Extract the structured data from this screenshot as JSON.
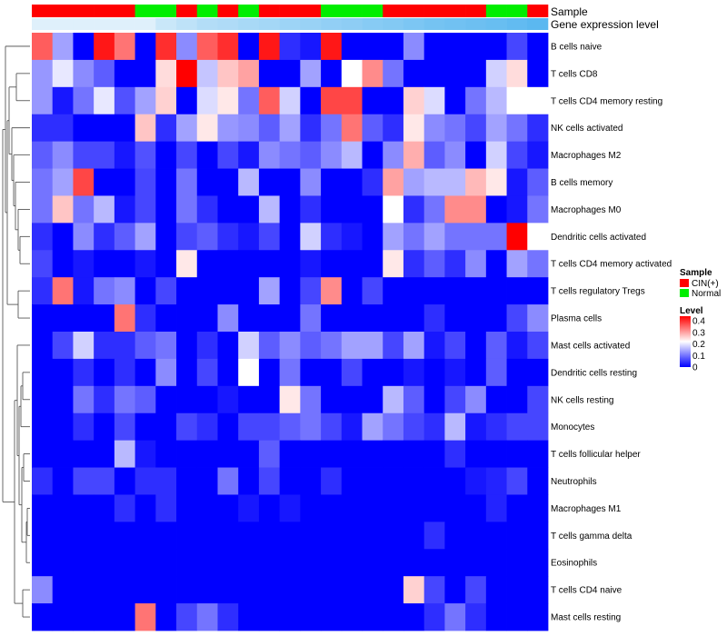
{
  "chart_data": {
    "type": "heatmap",
    "title": "",
    "annotation_labels": {
      "sample": "Sample",
      "gene_expression": "Gene expression level"
    },
    "rows": [
      "B cells naive",
      "T cells CD8",
      "T cells CD4 memory resting",
      "NK cells activated",
      "Macrophages M2",
      "B cells memory",
      "Macrophages M0",
      "Dendritic cells activated",
      "T cells CD4 memory activated",
      "T cells regulatory  Tregs",
      "Plasma cells",
      "Mast cells activated",
      "Dendritic cells resting",
      "NK cells resting",
      "Monocytes",
      "T cells follicular helper",
      "Neutrophils",
      "Macrophages M1",
      "T cells gamma delta",
      "Eosinophils",
      "T cells CD4 naive",
      "Mast cells resting"
    ],
    "samples": [
      "CIN(+)",
      "CIN(+)",
      "CIN(+)",
      "CIN(+)",
      "CIN(+)",
      "Normal",
      "Normal",
      "CIN(+)",
      "Normal",
      "CIN(+)",
      "Normal",
      "CIN(+)",
      "CIN(+)",
      "CIN(+)",
      "Normal",
      "Normal",
      "Normal",
      "CIN(+)",
      "CIN(+)",
      "CIN(+)",
      "CIN(+)",
      "CIN(+)",
      "Normal",
      "Normal",
      "CIN(+)"
    ],
    "gene_expression_level": [
      0.2,
      0.2,
      0.2,
      0.2,
      0.2,
      0.2,
      0.3,
      0.35,
      0.4,
      0.42,
      0.45,
      0.47,
      0.5,
      0.52,
      0.55,
      0.57,
      0.6,
      0.62,
      0.65,
      0.68,
      0.7,
      0.72,
      0.74,
      0.77,
      0.8
    ],
    "values": [
      [
        0.36,
        0.14,
        0.0,
        0.42,
        0.34,
        0.0,
        0.4,
        0.12,
        0.36,
        0.4,
        0.0,
        0.42,
        0.04,
        0.02,
        0.42,
        0.0,
        0.0,
        0.0,
        0.12,
        0.0,
        0.0,
        0.0,
        0.0,
        0.06,
        0.0
      ],
      [
        0.13,
        0.2,
        0.12,
        0.08,
        0.0,
        0.0,
        0.25,
        0.44,
        0.17,
        0.27,
        0.3,
        0.0,
        0.0,
        0.14,
        0.0,
        0.22,
        0.32,
        0.1,
        0.0,
        0.0,
        0.0,
        0.0,
        0.18,
        0.25,
        0.0
      ],
      [
        0.13,
        0.02,
        0.1,
        0.2,
        0.07,
        0.14,
        0.26,
        0.0,
        0.19,
        0.24,
        0.1,
        0.36,
        0.18,
        0.0,
        0.38,
        0.38,
        0.0,
        0.0,
        0.26,
        0.19,
        0.0,
        0.1,
        0.16,
        0.22,
        0.22
      ],
      [
        0.04,
        0.04,
        0.0,
        0.0,
        0.0,
        0.27,
        0.04,
        0.14,
        0.24,
        0.13,
        0.12,
        0.08,
        0.14,
        0.04,
        0.1,
        0.34,
        0.08,
        0.04,
        0.24,
        0.12,
        0.1,
        0.06,
        0.14,
        0.1,
        0.04
      ],
      [
        0.08,
        0.12,
        0.06,
        0.06,
        0.02,
        0.07,
        0.0,
        0.06,
        0.0,
        0.06,
        0.02,
        0.12,
        0.1,
        0.08,
        0.12,
        0.16,
        0.0,
        0.12,
        0.29,
        0.08,
        0.12,
        0.0,
        0.18,
        0.06,
        0.02
      ],
      [
        0.1,
        0.14,
        0.38,
        0.0,
        0.0,
        0.06,
        0.0,
        0.1,
        0.0,
        0.0,
        0.16,
        0.0,
        0.0,
        0.12,
        0.0,
        0.0,
        0.04,
        0.3,
        0.14,
        0.16,
        0.16,
        0.28,
        0.24,
        0.02,
        0.08
      ],
      [
        0.1,
        0.27,
        0.1,
        0.16,
        0.02,
        0.06,
        0.0,
        0.1,
        0.04,
        0.0,
        0.0,
        0.16,
        0.0,
        0.04,
        0.0,
        0.0,
        0.0,
        0.22,
        0.04,
        0.1,
        0.32,
        0.32,
        0.0,
        0.02,
        0.1
      ],
      [
        0.04,
        0.0,
        0.12,
        0.04,
        0.08,
        0.14,
        0.0,
        0.06,
        0.08,
        0.04,
        0.02,
        0.06,
        0.0,
        0.18,
        0.04,
        0.02,
        0.0,
        0.14,
        0.1,
        0.14,
        0.1,
        0.1,
        0.1,
        0.44,
        0.22
      ],
      [
        0.06,
        0.0,
        0.02,
        0.0,
        0.0,
        0.02,
        0.0,
        0.24,
        0.0,
        0.0,
        0.0,
        0.0,
        0.0,
        0.02,
        0.0,
        0.0,
        0.0,
        0.24,
        0.04,
        0.08,
        0.04,
        0.12,
        0.0,
        0.14,
        0.1
      ],
      [
        0.04,
        0.34,
        0.02,
        0.1,
        0.12,
        0.0,
        0.06,
        0.0,
        0.0,
        0.0,
        0.0,
        0.14,
        0.0,
        0.06,
        0.32,
        0.0,
        0.06,
        0.0,
        0.0,
        0.0,
        0.0,
        0.0,
        0.0,
        0.0,
        0.0
      ],
      [
        0.0,
        0.0,
        0.0,
        0.0,
        0.34,
        0.04,
        0.0,
        0.0,
        0.0,
        0.12,
        0.0,
        0.0,
        0.0,
        0.1,
        0.0,
        0.0,
        0.0,
        0.0,
        0.0,
        0.04,
        0.0,
        0.0,
        0.0,
        0.06,
        0.12
      ],
      [
        0.0,
        0.06,
        0.18,
        0.04,
        0.04,
        0.08,
        0.1,
        0.0,
        0.04,
        0.0,
        0.18,
        0.08,
        0.12,
        0.08,
        0.1,
        0.14,
        0.14,
        0.06,
        0.14,
        0.02,
        0.06,
        0.0,
        0.08,
        0.02,
        0.06
      ],
      [
        0.0,
        0.0,
        0.04,
        0.0,
        0.04,
        0.0,
        0.12,
        0.0,
        0.06,
        0.0,
        0.22,
        0.0,
        0.1,
        0.0,
        0.0,
        0.06,
        0.0,
        0.0,
        0.02,
        0.0,
        0.02,
        0.0,
        0.08,
        0.0,
        0.0
      ],
      [
        0.0,
        0.0,
        0.1,
        0.04,
        0.1,
        0.08,
        0.0,
        0.0,
        0.0,
        0.02,
        0.0,
        0.0,
        0.24,
        0.1,
        0.0,
        0.0,
        0.0,
        0.16,
        0.08,
        0.0,
        0.06,
        0.12,
        0.0,
        0.0,
        0.06
      ],
      [
        0.0,
        0.0,
        0.04,
        0.0,
        0.06,
        0.0,
        0.0,
        0.06,
        0.04,
        0.0,
        0.06,
        0.06,
        0.08,
        0.1,
        0.06,
        0.02,
        0.14,
        0.1,
        0.06,
        0.04,
        0.16,
        0.02,
        0.04,
        0.06,
        0.06
      ],
      [
        0.0,
        0.0,
        0.0,
        0.0,
        0.16,
        0.02,
        0.0,
        0.0,
        0.0,
        0.0,
        0.0,
        0.08,
        0.0,
        0.0,
        0.0,
        0.0,
        0.0,
        0.0,
        0.0,
        0.0,
        0.04,
        0.0,
        0.0,
        0.0,
        0.0
      ],
      [
        0.04,
        0.0,
        0.06,
        0.06,
        0.0,
        0.04,
        0.04,
        0.0,
        0.0,
        0.1,
        0.0,
        0.06,
        0.0,
        0.0,
        0.04,
        0.0,
        0.0,
        0.0,
        0.0,
        0.0,
        0.0,
        0.02,
        0.03,
        0.06,
        0.0
      ],
      [
        0.0,
        0.0,
        0.0,
        0.0,
        0.04,
        0.0,
        0.04,
        0.0,
        0.0,
        0.0,
        0.02,
        0.0,
        0.02,
        0.0,
        0.0,
        0.0,
        0.0,
        0.0,
        0.0,
        0.0,
        0.0,
        0.0,
        0.03,
        0.0,
        0.0
      ],
      [
        0.0,
        0.0,
        0.0,
        0.0,
        0.0,
        0.0,
        0.0,
        0.0,
        0.0,
        0.0,
        0.0,
        0.0,
        0.0,
        0.0,
        0.0,
        0.0,
        0.0,
        0.0,
        0.0,
        0.04,
        0.0,
        0.0,
        0.0,
        0.0,
        0.0
      ],
      [
        0.0,
        0.0,
        0.0,
        0.0,
        0.0,
        0.0,
        0.0,
        0.0,
        0.0,
        0.0,
        0.0,
        0.0,
        0.0,
        0.0,
        0.0,
        0.0,
        0.0,
        0.0,
        0.0,
        0.0,
        0.0,
        0.0,
        0.0,
        0.0,
        0.0
      ],
      [
        0.12,
        0.0,
        0.0,
        0.0,
        0.0,
        0.0,
        0.0,
        0.0,
        0.0,
        0.0,
        0.0,
        0.0,
        0.0,
        0.0,
        0.0,
        0.0,
        0.0,
        0.0,
        0.26,
        0.06,
        0.0,
        0.06,
        0.0,
        0.0,
        0.0
      ],
      [
        0.0,
        0.0,
        0.0,
        0.0,
        0.0,
        0.34,
        0.0,
        0.06,
        0.1,
        0.04,
        0.0,
        0.0,
        0.0,
        0.0,
        0.0,
        0.0,
        0.0,
        0.0,
        0.0,
        0.04,
        0.1,
        0.04,
        0.0,
        0.0,
        0.0
      ]
    ],
    "legend": {
      "sample_title": "Sample",
      "sample_entries": [
        {
          "label": "CIN(+)",
          "color": "#ff0000"
        },
        {
          "label": "Normal",
          "color": "#00ee00"
        }
      ],
      "level_title": "Level",
      "level_ticks": [
        "0.4",
        "0.3",
        "0.2",
        "0.1",
        "0"
      ],
      "level_tick_values": [
        0.4,
        0.3,
        0.2,
        0.1,
        0
      ],
      "level_range": [
        0,
        0.44
      ]
    },
    "colors": {
      "low": "#0000ff",
      "mid": "#ffffff",
      "high": "#ff0000",
      "expr_low": "#dff0fb",
      "expr_high": "#5bb8f0"
    },
    "clustering": {
      "rows": "dendrogram",
      "columns": "none"
    }
  }
}
